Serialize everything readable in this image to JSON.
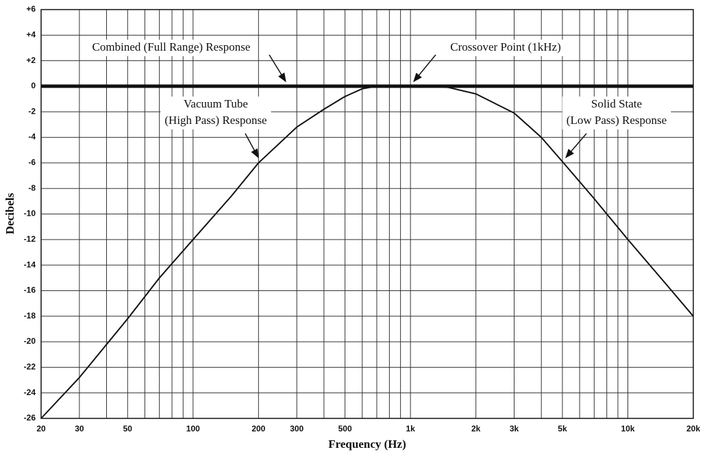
{
  "chart_data": {
    "type": "line",
    "xscale": "log",
    "grid": true,
    "color": "#111111",
    "xlabel": "Frequency (Hz)",
    "ylabel": "Decibels",
    "xlim": [
      20,
      20000
    ],
    "ylim": [
      -26,
      6
    ],
    "xticks": [
      20,
      30,
      50,
      100,
      200,
      300,
      500,
      {
        "value": 1000,
        "label": "1k"
      },
      {
        "value": 2000,
        "label": "2k"
      },
      {
        "value": 3000,
        "label": "3k"
      },
      {
        "value": 5000,
        "label": "5k"
      },
      {
        "value": 10000,
        "label": "10k"
      },
      {
        "value": 20000,
        "label": "20k"
      }
    ],
    "xgrid": [
      30,
      40,
      50,
      60,
      70,
      80,
      90,
      100,
      200,
      300,
      400,
      500,
      600,
      700,
      800,
      900,
      1000,
      2000,
      3000,
      4000,
      5000,
      6000,
      7000,
      8000,
      9000,
      10000
    ],
    "yticks": [
      {
        "value": 6,
        "label": "+6"
      },
      {
        "value": 4,
        "label": "+4"
      },
      {
        "value": 2,
        "label": "+2"
      },
      0,
      -2,
      -4,
      -6,
      -8,
      -10,
      -12,
      -14,
      -16,
      -18,
      -20,
      -22,
      -24,
      -26
    ],
    "series": [
      {
        "x": [
          20,
          20000
        ],
        "values": [
          0,
          0
        ],
        "width": 5
      },
      {
        "x": [
          20,
          30,
          50,
          70,
          100,
          150,
          200,
          300,
          400,
          500,
          600,
          700,
          800,
          1000
        ],
        "values": [
          -26,
          -22.8,
          -18.2,
          -15,
          -12,
          -8.6,
          -6,
          -3.2,
          -1.8,
          -0.8,
          -0.2,
          0,
          0,
          0
        ],
        "width": 2
      },
      {
        "x": [
          1000,
          1300,
          1500,
          2000,
          3000,
          4000,
          5000,
          7000,
          10000,
          15000,
          20000
        ],
        "values": [
          0,
          0,
          -0.1,
          -0.6,
          -2.1,
          -4,
          -5.9,
          -8.8,
          -12,
          -15.5,
          -18
        ],
        "width": 2
      }
    ],
    "annotations": [
      [
        "Combined (Full Range) Response"
      ],
      [
        "Crossover Point (1kHz)"
      ],
      [
        "Vacuum Tube",
        "(High Pass) Response"
      ],
      [
        "Solid State",
        "(Low Pass) Response"
      ]
    ]
  }
}
